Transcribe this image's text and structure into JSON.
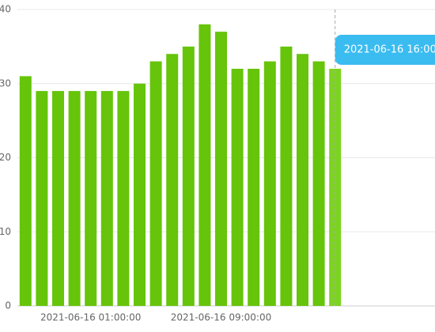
{
  "chart_data": {
    "type": "bar",
    "categories": [
      null,
      null,
      null,
      null,
      "2021-06-16 01:00:00",
      null,
      null,
      null,
      null,
      null,
      null,
      null,
      "2021-06-16 09:00:00",
      null,
      null,
      null,
      null,
      null,
      null,
      null
    ],
    "values": [
      31,
      29,
      29,
      29,
      29,
      29,
      29,
      30,
      33,
      34,
      35,
      38,
      37,
      32,
      32,
      33,
      35,
      34,
      33,
      32
    ],
    "color": "#66c40a",
    "highlight_color": "#7dd321",
    "ylim": [
      0,
      40
    ],
    "yticks": [
      0,
      10,
      20,
      30,
      40
    ],
    "grid": true,
    "tooltip": {
      "index": 19,
      "text": "2021-06-16 16:00",
      "color": "#3bbcf0"
    }
  }
}
